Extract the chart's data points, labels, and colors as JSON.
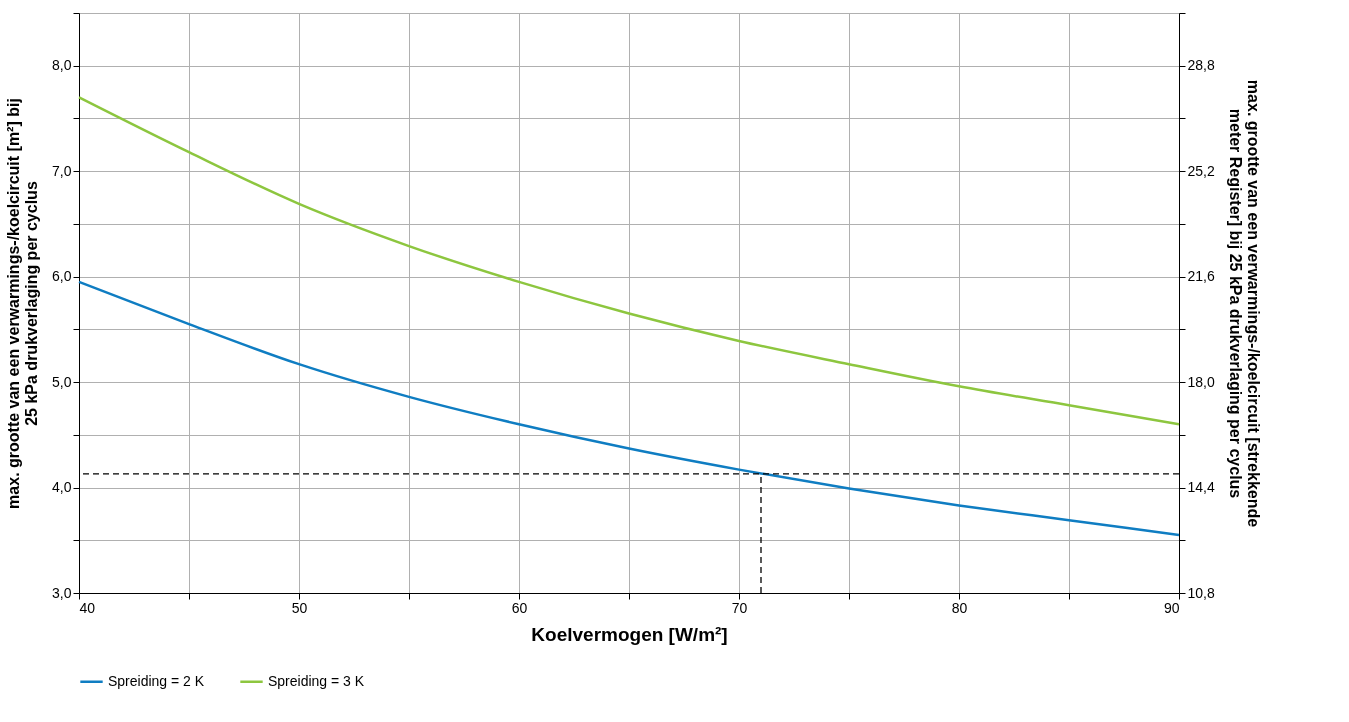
{
  "chart_data": {
    "type": "line",
    "xlabel": "Koelvermogen [W/m²]",
    "ylabel": "max. grootte van een verwarmings-/koelcircuit [m²] bij 25 kPa drukverlaging per cyclus",
    "y2label": "max. grootte van een verwarmings-/koelcircuit [strekkende meter Register] bij 25 kPa drukverlaging per cyclus",
    "x": [
      40,
      45,
      50,
      55,
      60,
      65,
      70,
      75,
      80,
      85,
      90
    ],
    "series": [
      {
        "name": "Spreiding = 2 K",
        "color": "#0f7dc2",
        "values": [
          5.95,
          5.55,
          5.17,
          4.86,
          4.6,
          4.37,
          4.17,
          3.99,
          3.83,
          3.69,
          3.55
        ]
      },
      {
        "name": "Spreiding = 3 K",
        "color": "#8dc63f",
        "values": [
          7.7,
          7.18,
          6.69,
          6.29,
          5.95,
          5.65,
          5.39,
          5.17,
          4.96,
          4.78,
          4.6
        ]
      }
    ],
    "xlim": [
      40,
      90
    ],
    "xticks": [
      40,
      {
        "value": 45,
        "label": null
      },
      50,
      {
        "value": 55,
        "label": null
      },
      60,
      {
        "value": 65,
        "label": null
      },
      70,
      {
        "value": 75,
        "label": null
      },
      80,
      {
        "value": 85,
        "label": null
      },
      90
    ],
    "ylim": [
      3.0,
      8.5
    ],
    "yticks": [
      {
        "value": 3,
        "label": "3,0"
      },
      {
        "value": 3.5,
        "label": null
      },
      {
        "value": 4,
        "label": "4,0"
      },
      {
        "value": 4.5,
        "label": null
      },
      {
        "value": 5,
        "label": "5,0"
      },
      {
        "value": 5.5,
        "label": null
      },
      {
        "value": 6,
        "label": "6,0"
      },
      {
        "value": 6.5,
        "label": null
      },
      {
        "value": 7,
        "label": "7,0"
      },
      {
        "value": 7.5,
        "label": null
      },
      {
        "value": 8,
        "label": "8,0"
      },
      {
        "value": 8.5,
        "label": null
      }
    ],
    "y2lim": [
      10.8,
      30.6
    ],
    "y2ticks": [
      {
        "value": 10.8,
        "label": "10,8"
      },
      {
        "value": 12.6,
        "label": null
      },
      {
        "value": 14.4,
        "label": "14,4"
      },
      {
        "value": 16.2,
        "label": null
      },
      {
        "value": 18.0,
        "label": "18,0"
      },
      {
        "value": 19.8,
        "label": null
      },
      {
        "value": 21.6,
        "label": "21,6"
      },
      {
        "value": 23.4,
        "label": null
      },
      {
        "value": 25.2,
        "label": "25,2"
      },
      {
        "value": 27.0,
        "label": null
      },
      {
        "value": 28.8,
        "label": "28,8"
      },
      {
        "value": 30.6,
        "label": null
      }
    ],
    "ref_lines": [
      {
        "axis": "y",
        "value": 4.13,
        "color": "#000000",
        "line_style": "dashed"
      },
      {
        "axis": "x",
        "value": 71,
        "color": "#000000",
        "line_style": "dashed"
      }
    ],
    "grid": true,
    "legend": "bottom left",
    "line_style": "solid",
    "marker": "none"
  }
}
